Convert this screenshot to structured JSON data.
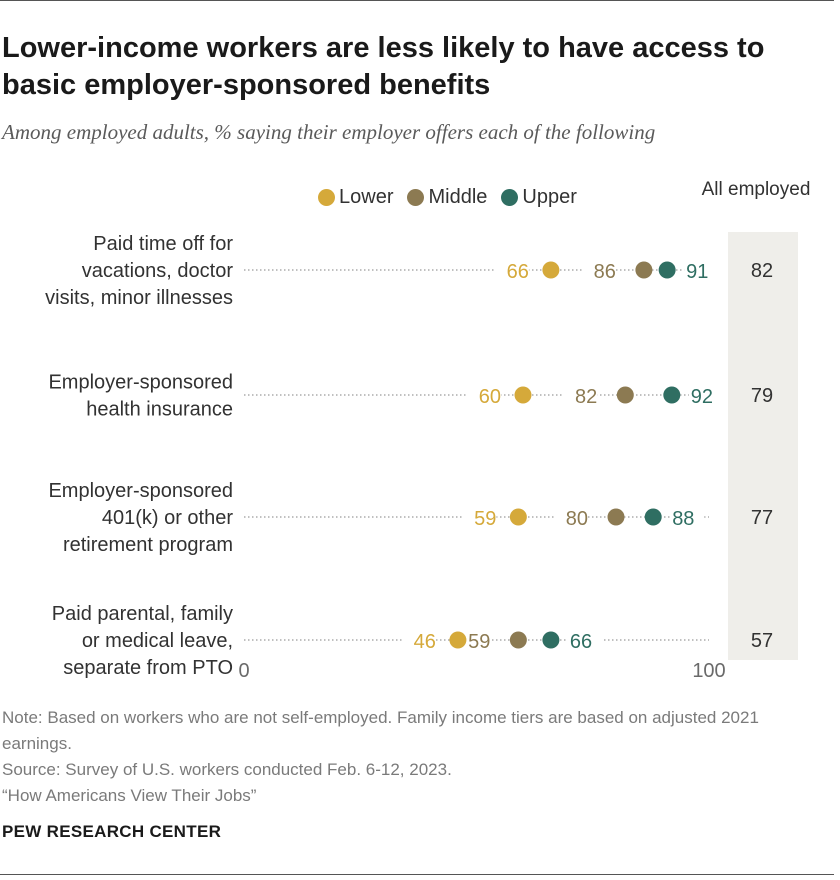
{
  "title": "Lower-income workers are less likely to have access to basic employer-sponsored benefits",
  "subtitle": "Among employed adults, % saying their employer offers each of the following",
  "legend": {
    "lower": {
      "label": "Lower",
      "color": "#d5a93a"
    },
    "middle": {
      "label": "Middle",
      "color": "#8c7a52"
    },
    "upper": {
      "label": "Upper",
      "color": "#2f6e62"
    }
  },
  "all_employed_header": "All employed",
  "axis": {
    "min_label": "0",
    "max_label": "100"
  },
  "chart_data": {
    "type": "dot",
    "xlim": [
      0,
      100
    ],
    "series": [
      {
        "name": "Lower",
        "color": "#d5a93a"
      },
      {
        "name": "Middle",
        "color": "#8c7a52"
      },
      {
        "name": "Upper",
        "color": "#2f6e62"
      }
    ],
    "categories": [
      {
        "label": [
          "Paid time off for",
          "vacations, doctor",
          "visits, minor illnesses"
        ],
        "lower": 66,
        "middle": 86,
        "upper": 91,
        "all": 82
      },
      {
        "label": [
          "Employer-sponsored",
          "health insurance"
        ],
        "lower": 60,
        "middle": 82,
        "upper": 92,
        "all": 79
      },
      {
        "label": [
          "Employer-sponsored",
          "401(k) or other",
          "retirement program"
        ],
        "lower": 59,
        "middle": 80,
        "upper": 88,
        "all": 77
      },
      {
        "label": [
          "Paid parental, family",
          "or medical leave,",
          "separate from PTO"
        ],
        "lower": 46,
        "middle": 59,
        "upper": 66,
        "all": 57
      }
    ]
  },
  "footer": {
    "note": "Note: Based on workers who are not self-employed. Family income tiers are based on adjusted 2021 earnings.",
    "source": "Source: Survey of U.S. workers conducted Feb. 6-12, 2023.",
    "report": "“How Americans View Their Jobs”"
  },
  "brand": "PEW RESEARCH CENTER"
}
